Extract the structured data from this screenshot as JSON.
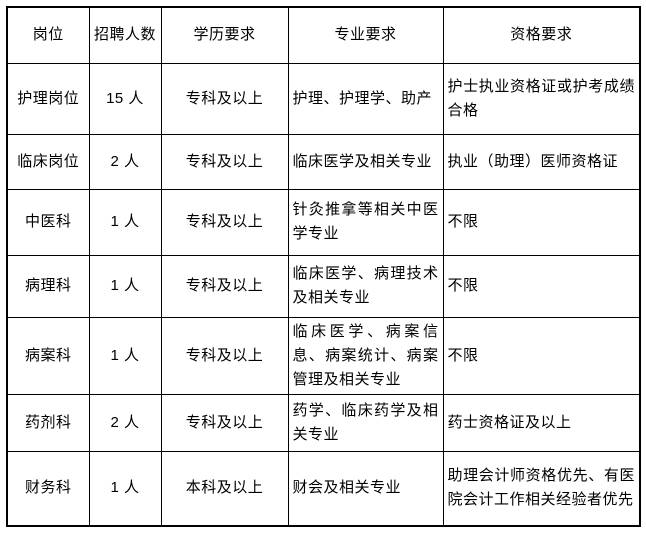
{
  "page": {
    "background_color": "#ffffff",
    "text_color": "#000000",
    "border_color": "#000000"
  },
  "table": {
    "headers": [
      {
        "key": "position",
        "label": "岗位"
      },
      {
        "key": "count",
        "label": "招聘人数"
      },
      {
        "key": "education",
        "label": "学历要求"
      },
      {
        "key": "major",
        "label": "专业要求"
      },
      {
        "key": "qualification",
        "label": "资格要求"
      }
    ],
    "rows": [
      {
        "position": "护理岗位",
        "count": "15 人",
        "education": "专科及以上",
        "major": "护理、护理学、助产",
        "qualification": "护士执业资格证或护考成绩合格"
      },
      {
        "position": "临床岗位",
        "count": "2 人",
        "education": "专科及以上",
        "major": "临床医学及相关专业",
        "qualification": "执业（助理）医师资格证"
      },
      {
        "position": "中医科",
        "count": "1 人",
        "education": "专科及以上",
        "major": "针灸推拿等相关中医学专业",
        "qualification": "不限"
      },
      {
        "position": "病理科",
        "count": "1 人",
        "education": "专科及以上",
        "major": "临床医学、病理技术及相关专业",
        "qualification": "不限"
      },
      {
        "position": "病案科",
        "count": "1 人",
        "education": "专科及以上",
        "major": "临床医学、病案信息、病案统计、病案管理及相关专业",
        "qualification": "不限"
      },
      {
        "position": "药剂科",
        "count": "2 人",
        "education": "专科及以上",
        "major": "药学、临床药学及相关专业",
        "qualification": "药士资格证及以上"
      },
      {
        "position": "财务科",
        "count": "1 人",
        "education": "本科及以上",
        "major": "财会及相关专业",
        "qualification": "助理会计师资格优先、有医院会计工作相关经验者优先"
      }
    ]
  }
}
